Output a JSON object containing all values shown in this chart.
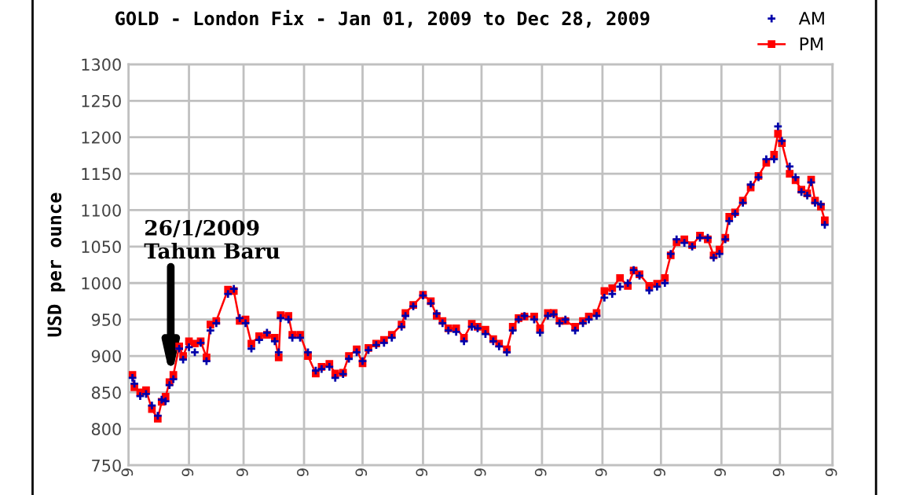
{
  "chart_data": {
    "type": "scatter",
    "title": "GOLD - London Fix - Jan 01, 2009 to Dec 28, 2009",
    "ylabel": "USD per ounce",
    "x": [
      "2009-01-03",
      "2009-01-04",
      "2009-01-07",
      "2009-01-10",
      "2009-01-13",
      "2009-01-16",
      "2009-01-18",
      "2009-01-20",
      "2009-01-22",
      "2009-01-24",
      "2009-01-27",
      "2009-01-29",
      "2009-02-01",
      "2009-02-04",
      "2009-02-07",
      "2009-02-10",
      "2009-02-12",
      "2009-02-15",
      "2009-02-21",
      "2009-02-24",
      "2009-02-27",
      "2009-03-02",
      "2009-03-05",
      "2009-03-09",
      "2009-03-13",
      "2009-03-17",
      "2009-03-19",
      "2009-03-20",
      "2009-03-24",
      "2009-03-26",
      "2009-03-30",
      "2009-04-03",
      "2009-04-07",
      "2009-04-10",
      "2009-04-14",
      "2009-04-17",
      "2009-04-21",
      "2009-04-24",
      "2009-04-28",
      "2009-05-01",
      "2009-05-04",
      "2009-05-08",
      "2009-05-12",
      "2009-05-16",
      "2009-05-21",
      "2009-05-23",
      "2009-05-27",
      "2009-06-01",
      "2009-06-05",
      "2009-06-08",
      "2009-06-11",
      "2009-06-14",
      "2009-06-18",
      "2009-06-22",
      "2009-06-26",
      "2009-06-29",
      "2009-07-03",
      "2009-07-07",
      "2009-07-10",
      "2009-07-14",
      "2009-07-17",
      "2009-07-20",
      "2009-07-23",
      "2009-07-28",
      "2009-07-31",
      "2009-08-04",
      "2009-08-07",
      "2009-08-10",
      "2009-08-13",
      "2009-08-18",
      "2009-08-22",
      "2009-08-25",
      "2009-08-29",
      "2009-09-02",
      "2009-09-06",
      "2009-09-10",
      "2009-09-14",
      "2009-09-17",
      "2009-09-20",
      "2009-09-25",
      "2009-09-29",
      "2009-10-03",
      "2009-10-06",
      "2009-10-09",
      "2009-10-13",
      "2009-10-17",
      "2009-10-21",
      "2009-10-25",
      "2009-10-28",
      "2009-10-31",
      "2009-11-03",
      "2009-11-05",
      "2009-11-08",
      "2009-11-12",
      "2009-11-16",
      "2009-11-20",
      "2009-11-24",
      "2009-11-28",
      "2009-11-30",
      "2009-12-02",
      "2009-12-06",
      "2009-12-09",
      "2009-12-12",
      "2009-12-15",
      "2009-12-17",
      "2009-12-19",
      "2009-12-22",
      "2009-12-24"
    ],
    "series": [
      {
        "name": "AM",
        "marker": "cross",
        "color": "#0000aa",
        "values": [
          870,
          862,
          845,
          848,
          832,
          818,
          840,
          838,
          860,
          868,
          910,
          895,
          912,
          905,
          918,
          893,
          935,
          945,
          985,
          992,
          952,
          945,
          910,
          922,
          932,
          920,
          905,
          952,
          950,
          925,
          925,
          905,
          880,
          882,
          885,
          870,
          875,
          896,
          905,
          893,
          908,
          915,
          918,
          925,
          940,
          955,
          968,
          983,
          972,
          958,
          945,
          935,
          933,
          920,
          940,
          938,
          930,
          920,
          913,
          905,
          935,
          950,
          955,
          950,
          932,
          955,
          957,
          945,
          950,
          935,
          945,
          950,
          955,
          980,
          985,
          995,
          1000,
          1018,
          1010,
          990,
          995,
          1000,
          1040,
          1060,
          1055,
          1050,
          1062,
          1062,
          1035,
          1040,
          1060,
          1085,
          1095,
          1110,
          1135,
          1145,
          1170,
          1170,
          1215,
          1195,
          1160,
          1145,
          1125,
          1120,
          1138,
          1110,
          1108,
          1080
        ]
      },
      {
        "name": "PM",
        "type": "line",
        "marker": "square",
        "color": "#ff0000",
        "values": [
          874,
          857,
          850,
          853,
          827,
          814,
          837,
          844,
          864,
          874,
          913,
          900,
          920,
          917,
          920,
          898,
          943,
          948,
          991,
          989,
          948,
          950,
          917,
          927,
          929,
          925,
          898,
          956,
          955,
          929,
          929,
          900,
          876,
          885,
          889,
          876,
          877,
          900,
          909,
          890,
          911,
          917,
          922,
          929,
          943,
          959,
          970,
          984,
          975,
          955,
          948,
          938,
          938,
          925,
          944,
          940,
          936,
          923,
          917,
          909,
          940,
          952,
          954,
          954,
          938,
          959,
          959,
          948,
          948,
          940,
          948,
          954,
          959,
          989,
          993,
          1007,
          996,
          1017,
          1012,
          996,
          999,
          1007,
          1038,
          1056,
          1060,
          1052,
          1065,
          1060,
          1038,
          1046,
          1062,
          1091,
          1097,
          1113,
          1131,
          1147,
          1165,
          1176,
          1205,
          1192,
          1150,
          1141,
          1128,
          1123,
          1142,
          1113,
          1105,
          1086
        ]
      }
    ],
    "xlim": [
      "2009-01-01",
      "2009-12-28"
    ],
    "xticks": [
      {
        "value": "2009-01-01",
        "label": "9"
      },
      {
        "value": "2009-02-01",
        "label": "9"
      },
      {
        "value": "2009-03-01",
        "label": "9"
      },
      {
        "value": "2009-04-01",
        "label": "9"
      },
      {
        "value": "2009-05-01",
        "label": "9"
      },
      {
        "value": "2009-06-01",
        "label": "9"
      },
      {
        "value": "2009-07-01",
        "label": "9"
      },
      {
        "value": "2009-08-01",
        "label": "9"
      },
      {
        "value": "2009-09-01",
        "label": "9"
      },
      {
        "value": "2009-10-01",
        "label": "9"
      },
      {
        "value": "2009-11-01",
        "label": "9"
      },
      {
        "value": "2009-12-01",
        "label": "9"
      },
      {
        "value": "2009-12-28",
        "label": "9"
      }
    ],
    "ylim": [
      750,
      1300
    ],
    "yticks": [
      750,
      800,
      850,
      900,
      950,
      1000,
      1050,
      1100,
      1150,
      1200,
      1250,
      1300
    ],
    "grid": true,
    "legend": "top right",
    "annotations": [
      "26/1/2009\nTahun Baru"
    ]
  }
}
